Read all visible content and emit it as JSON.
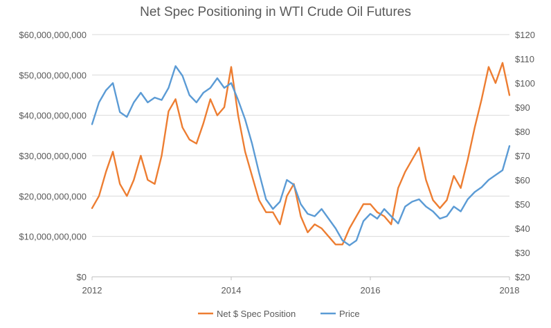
{
  "chart_data": {
    "type": "line",
    "title": "Net Spec Positioning in WTI Crude Oil Futures",
    "x_axis": {
      "ticks": [
        "2012",
        "2014",
        "2016",
        "2018"
      ],
      "range": [
        2012,
        2018
      ]
    },
    "y_left": {
      "ticks": [
        "$0",
        "$10,000,000,000",
        "$20,000,000,000",
        "$30,000,000,000",
        "$40,000,000,000",
        "$50,000,000,000",
        "$60,000,000,000"
      ],
      "range": [
        0,
        60000000000
      ]
    },
    "y_right": {
      "ticks": [
        "$20",
        "$30",
        "$40",
        "$50",
        "$60",
        "$70",
        "$80",
        "$90",
        "$100",
        "$110",
        "$120"
      ],
      "range": [
        20,
        120
      ]
    },
    "grid": true,
    "legend_position": "bottom",
    "series": [
      {
        "name": "Net $ Spec Position",
        "axis": "left",
        "color": "#ED7D31",
        "x": [
          2012.0,
          2012.1,
          2012.2,
          2012.3,
          2012.4,
          2012.5,
          2012.6,
          2012.7,
          2012.8,
          2012.9,
          2013.0,
          2013.1,
          2013.2,
          2013.3,
          2013.4,
          2013.5,
          2013.6,
          2013.7,
          2013.8,
          2013.9,
          2014.0,
          2014.1,
          2014.2,
          2014.3,
          2014.4,
          2014.5,
          2014.6,
          2014.7,
          2014.8,
          2014.9,
          2015.0,
          2015.1,
          2015.2,
          2015.3,
          2015.4,
          2015.5,
          2015.6,
          2015.7,
          2015.8,
          2015.9,
          2016.0,
          2016.1,
          2016.2,
          2016.3,
          2016.4,
          2016.5,
          2016.6,
          2016.7,
          2016.8,
          2016.9,
          2017.0,
          2017.1,
          2017.2,
          2017.3,
          2017.4,
          2017.5,
          2017.6,
          2017.7,
          2017.8,
          2017.9,
          2018.0
        ],
        "values": [
          17000000000,
          20000000000,
          26000000000,
          31000000000,
          23000000000,
          20000000000,
          24000000000,
          30000000000,
          24000000000,
          23000000000,
          30000000000,
          41000000000,
          44000000000,
          37000000000,
          34000000000,
          33000000000,
          38000000000,
          44000000000,
          40000000000,
          42000000000,
          52000000000,
          40000000000,
          31000000000,
          25000000000,
          19000000000,
          16000000000,
          16000000000,
          13000000000,
          20000000000,
          23000000000,
          15000000000,
          11000000000,
          13000000000,
          12000000000,
          10000000000,
          8000000000,
          8000000000,
          12000000000,
          15000000000,
          18000000000,
          18000000000,
          16000000000,
          15000000000,
          13000000000,
          22000000000,
          26000000000,
          29000000000,
          32000000000,
          24000000000,
          19000000000,
          17000000000,
          19000000000,
          25000000000,
          22000000000,
          29000000000,
          37000000000,
          44000000000,
          52000000000,
          48000000000,
          53000000000,
          45000000000
        ]
      },
      {
        "name": "Price",
        "axis": "right",
        "color": "#5B9BD5",
        "x": [
          2012.0,
          2012.1,
          2012.2,
          2012.3,
          2012.4,
          2012.5,
          2012.6,
          2012.7,
          2012.8,
          2012.9,
          2013.0,
          2013.1,
          2013.2,
          2013.3,
          2013.4,
          2013.5,
          2013.6,
          2013.7,
          2013.8,
          2013.9,
          2014.0,
          2014.1,
          2014.2,
          2014.3,
          2014.4,
          2014.5,
          2014.6,
          2014.7,
          2014.8,
          2014.9,
          2015.0,
          2015.1,
          2015.2,
          2015.3,
          2015.4,
          2015.5,
          2015.6,
          2015.7,
          2015.8,
          2015.9,
          2016.0,
          2016.1,
          2016.2,
          2016.3,
          2016.4,
          2016.5,
          2016.6,
          2016.7,
          2016.8,
          2016.9,
          2017.0,
          2017.1,
          2017.2,
          2017.3,
          2017.4,
          2017.5,
          2017.6,
          2017.7,
          2017.8,
          2017.9,
          2018.0
        ],
        "values": [
          83,
          92,
          97,
          100,
          88,
          86,
          92,
          96,
          92,
          94,
          93,
          98,
          107,
          103,
          95,
          92,
          96,
          98,
          102,
          98,
          100,
          93,
          85,
          75,
          63,
          52,
          48,
          51,
          60,
          58,
          50,
          46,
          45,
          48,
          44,
          40,
          35,
          33,
          35,
          43,
          46,
          44,
          48,
          45,
          42,
          49,
          51,
          52,
          49,
          47,
          44,
          45,
          49,
          47,
          52,
          55,
          57,
          60,
          62,
          64,
          74
        ]
      }
    ]
  }
}
